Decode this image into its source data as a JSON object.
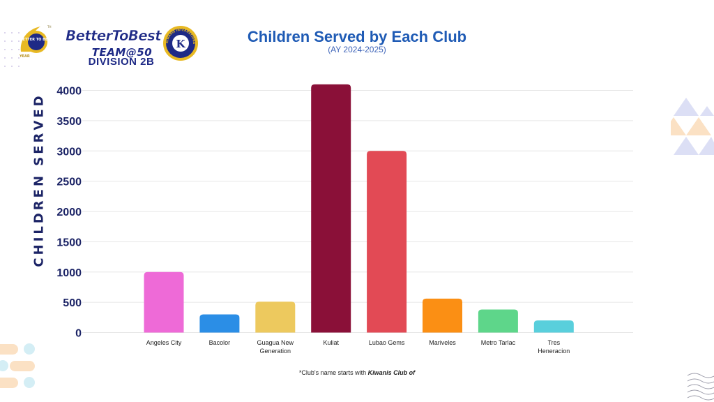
{
  "branding": {
    "logo_text": "BetterToBest",
    "team_label": "TEAM@50",
    "division_label": "DIVISION 2B",
    "badge_text": "BETTER TO BEST",
    "badge_year": "YEAR",
    "badge_th": "TH",
    "seal_text": "KIWANIS INTERNATIONAL",
    "seal_letter": "K"
  },
  "footnote": {
    "prefix": "*Club's name starts with ",
    "emphasis": "Kiwanis Club of"
  },
  "colors": {
    "title": "#1f5bb5",
    "axis_label": "#1c2466",
    "navy": "#1e2a86",
    "gold": "#e8b923"
  },
  "chart_data": {
    "type": "bar",
    "title": "Children Served by Each Club",
    "subtitle": "(AY 2024-2025)",
    "xlabel": "",
    "ylabel": "CHILDREN SERVED",
    "ylim": [
      0,
      4000
    ],
    "yticks": [
      0,
      500,
      1000,
      1500,
      2000,
      2500,
      3000,
      3500,
      4000
    ],
    "grid": true,
    "categories": [
      [
        "Angeles City"
      ],
      [
        "Bacolor"
      ],
      [
        "Guagua New",
        "Generation"
      ],
      [
        "Kuliat"
      ],
      [
        "Lubao Gems"
      ],
      [
        "Mariveles"
      ],
      [
        "Metro Tarlac"
      ],
      [
        "Tres",
        "Heneracion"
      ]
    ],
    "values": [
      1000,
      300,
      510,
      4100,
      3000,
      560,
      380,
      200
    ],
    "bar_colors": [
      "#ee6ad7",
      "#2b8ee6",
      "#edc95e",
      "#8a1038",
      "#e24a55",
      "#fb8f14",
      "#5ed68a",
      "#59cfdc"
    ]
  }
}
